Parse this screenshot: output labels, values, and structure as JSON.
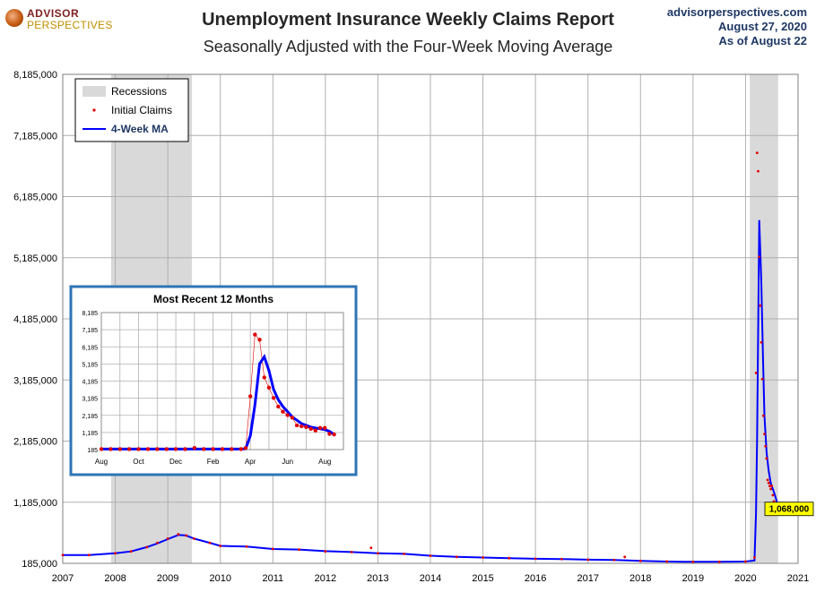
{
  "header": {
    "title": "Unemployment Insurance Weekly Claims Report",
    "subtitle": "Seasonally Adjusted with the Four-Week Moving Average",
    "logo_line1": "ADVISOR",
    "logo_line2": "PERSPECTIVES",
    "source_site": "advisorperspectives.com",
    "source_date": "August  27, 2020",
    "source_asof": "As  of August  22"
  },
  "colors": {
    "claims": "#e00000",
    "ma": "#0000ff",
    "recession": "#d9d9d9",
    "grid": "#b0b0b0",
    "callout_bg": "#ffff00",
    "inset_border": "#2e75b6"
  },
  "chart_data": [
    {
      "type": "line",
      "title": "Unemployment Insurance Weekly Claims Report",
      "ylim": [
        185000,
        8185000
      ],
      "y_ticks": [
        "185,000",
        "1,185,000",
        "2,185,000",
        "3,185,000",
        "4,185,000",
        "5,185,000",
        "6,185,000",
        "7,185,000",
        "8,185,000"
      ],
      "y_tick_values": [
        185000,
        1185000,
        2185000,
        3185000,
        4185000,
        5185000,
        6185000,
        7185000,
        8185000
      ],
      "xlim": [
        2007.0,
        2021.0
      ],
      "x_ticks": [
        "2007",
        "2008",
        "2009",
        "2010",
        "2011",
        "2012",
        "2013",
        "2014",
        "2015",
        "2016",
        "2017",
        "2018",
        "2019",
        "2020",
        "2021"
      ],
      "grid": true,
      "legend": {
        "placement": "top-left",
        "entries": [
          "Recessions",
          "Initial Claims",
          "4-Week MA"
        ]
      },
      "recessions": [
        [
          2007.92,
          2009.46
        ],
        [
          2020.08,
          2020.62
        ]
      ],
      "series": [
        {
          "name": "Initial Claims",
          "style": "points",
          "x": [
            2007.0,
            2007.5,
            2008.0,
            2008.3,
            2008.6,
            2008.8,
            2009.0,
            2009.2,
            2009.35,
            2009.5,
            2009.8,
            2010.0,
            2010.5,
            2011.0,
            2011.5,
            2012.0,
            2012.5,
            2012.87,
            2013.0,
            2013.5,
            2014.0,
            2014.5,
            2015.0,
            2015.5,
            2016.0,
            2016.5,
            2017.0,
            2017.5,
            2017.7,
            2018.0,
            2018.5,
            2019.0,
            2019.5,
            2020.0,
            2020.17,
            2020.2,
            2020.22,
            2020.24,
            2020.26,
            2020.28,
            2020.3,
            2020.32,
            2020.34,
            2020.36,
            2020.38,
            2020.4,
            2020.42,
            2020.44,
            2020.46,
            2020.48,
            2020.5,
            2020.52,
            2020.54,
            2020.56,
            2020.58,
            2020.6,
            2020.62,
            2020.64
          ],
          "y": [
            320000,
            320000,
            350000,
            380000,
            450000,
            520000,
            590000,
            660000,
            640000,
            590000,
            520000,
            470000,
            460000,
            420000,
            410000,
            380000,
            370000,
            440000,
            350000,
            340000,
            310000,
            290000,
            280000,
            270000,
            260000,
            255000,
            245000,
            240000,
            290000,
            225000,
            215000,
            210000,
            210000,
            215000,
            280000,
            3300000,
            6900000,
            6600000,
            5200000,
            4400000,
            3800000,
            3200000,
            2600000,
            2300000,
            2100000,
            1900000,
            1550000,
            1500000,
            1450000,
            1400000,
            1450000,
            1300000,
            1200000,
            1000000,
            1100000,
            1106000,
            1068000,
            1070000
          ]
        },
        {
          "name": "4-Week MA",
          "style": "line",
          "x": [
            2007.0,
            2007.5,
            2008.0,
            2008.3,
            2008.6,
            2008.8,
            2009.0,
            2009.2,
            2009.35,
            2009.5,
            2009.8,
            2010.0,
            2010.5,
            2011.0,
            2011.5,
            2012.0,
            2012.5,
            2013.0,
            2013.5,
            2014.0,
            2014.5,
            2015.0,
            2015.5,
            2016.0,
            2016.5,
            2017.0,
            2017.5,
            2018.0,
            2018.5,
            2019.0,
            2019.5,
            2020.0,
            2020.17,
            2020.2,
            2020.22,
            2020.26,
            2020.3,
            2020.33,
            2020.36,
            2020.4,
            2020.44,
            2020.48,
            2020.52,
            2020.56,
            2020.6,
            2020.64
          ],
          "y": [
            320000,
            320000,
            350000,
            380000,
            450000,
            510000,
            580000,
            650000,
            640000,
            590000,
            520000,
            470000,
            460000,
            420000,
            410000,
            385000,
            370000,
            350000,
            340000,
            310000,
            290000,
            280000,
            270000,
            260000,
            255000,
            245000,
            240000,
            225000,
            215000,
            210000,
            210000,
            215000,
            230000,
            1000000,
            2200000,
            5800000,
            4800000,
            3600000,
            2600000,
            2000000,
            1700000,
            1500000,
            1400000,
            1300000,
            1180000,
            1068000
          ]
        }
      ],
      "callout": "1,068,000"
    },
    {
      "type": "line",
      "title": "Most Recent 12 Months",
      "ylim": [
        185,
        8185
      ],
      "y_ticks": [
        "185",
        "1,185",
        "2,185",
        "3,185",
        "4,185",
        "5,185",
        "6,185",
        "7,185",
        "8,185"
      ],
      "y_tick_values": [
        185,
        1185,
        2185,
        3185,
        4185,
        5185,
        6185,
        7185,
        8185
      ],
      "x_ticks": [
        "Aug",
        "Oct",
        "Dec",
        "Feb",
        "Apr",
        "Jun",
        "Aug"
      ],
      "x_tick_positions": [
        0,
        2,
        4,
        6,
        8,
        10,
        12
      ],
      "xlim": [
        0,
        13
      ],
      "grid": true,
      "series": [
        {
          "name": "Initial Claims",
          "style": "points",
          "x": [
            0,
            0.5,
            1,
            1.5,
            2,
            2.5,
            3,
            3.5,
            4,
            4.5,
            5,
            5.5,
            6,
            6.5,
            7,
            7.5,
            7.75,
            8.0,
            8.25,
            8.5,
            8.75,
            9.0,
            9.25,
            9.5,
            9.75,
            10.0,
            10.25,
            10.5,
            10.75,
            11.0,
            11.25,
            11.5,
            11.75,
            12.0,
            12.25,
            12.5
          ],
          "y": [
            215,
            215,
            215,
            215,
            215,
            215,
            215,
            215,
            215,
            215,
            280,
            215,
            215,
            215,
            215,
            215,
            280,
            3300,
            6900,
            6600,
            4400,
            3800,
            3200,
            2700,
            2400,
            2200,
            2050,
            1600,
            1550,
            1500,
            1400,
            1300,
            1450,
            1450,
            1100,
            1068
          ]
        },
        {
          "name": "4-Week MA",
          "style": "line",
          "x": [
            0,
            1,
            2,
            3,
            4,
            5,
            6,
            7,
            7.5,
            7.75,
            8.0,
            8.25,
            8.5,
            8.75,
            9.0,
            9.25,
            9.5,
            9.75,
            10.0,
            10.25,
            10.5,
            10.75,
            11.0,
            11.25,
            11.5,
            11.75,
            12.0,
            12.25,
            12.5
          ],
          "y": [
            215,
            215,
            215,
            215,
            215,
            215,
            215,
            215,
            215,
            230,
            1000,
            2800,
            5200,
            5600,
            4800,
            3700,
            3100,
            2700,
            2400,
            2100,
            1900,
            1700,
            1600,
            1500,
            1450,
            1400,
            1350,
            1250,
            1068
          ]
        }
      ]
    }
  ]
}
